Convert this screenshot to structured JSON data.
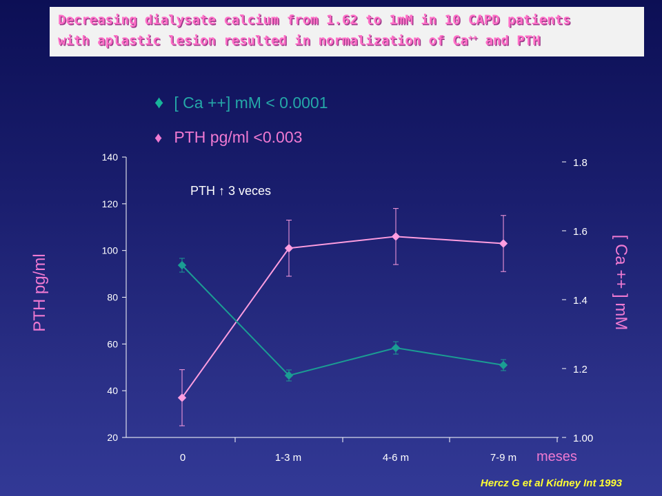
{
  "slide": {
    "title_line1": "Decreasing dialysate calcium from 1.62 to 1mM in 10 CAPD patients",
    "title_line2_prefix": "with aplastic lesion resulted in normalization of Ca",
    "title_line2_sup": "++",
    "title_line2_suffix": " and PTH",
    "legend_ca": "[ Ca ++] mM < 0.0001",
    "legend_pth": "PTH pg/ml  <0.003",
    "marker_symbol": "♦",
    "annotation": "PTH ↑ 3 veces",
    "y_left_label": "PTH pg/ml",
    "y_right_label": "[ Ca ++ ] mM",
    "x_unit": "meses",
    "citation": "Hercz G et al Kidney Int 1993"
  },
  "chart_data": {
    "type": "line",
    "categories": [
      "0",
      "1-3 m",
      "4-6 m",
      "7-9 m"
    ],
    "y_left": {
      "ticks": [
        20,
        40,
        60,
        80,
        100,
        120,
        140
      ],
      "ylim": [
        20,
        140
      ]
    },
    "y_right": {
      "ticks": [
        "1.00",
        "1.2",
        "1.4",
        "1.6",
        "1.8"
      ],
      "ylim": [
        1.0,
        1.8
      ]
    },
    "series": [
      {
        "key": "pth",
        "axis": "left",
        "color": "#ff9ee0",
        "values": [
          37,
          101,
          106,
          103
        ],
        "errors": [
          12,
          12,
          12,
          12
        ]
      },
      {
        "key": "ca",
        "axis": "right",
        "color": "#1b9d93",
        "values": [
          1.5,
          1.18,
          1.26,
          1.21
        ],
        "errors": [
          0.02,
          0.016,
          0.018,
          0.016
        ]
      }
    ],
    "grid": false
  }
}
